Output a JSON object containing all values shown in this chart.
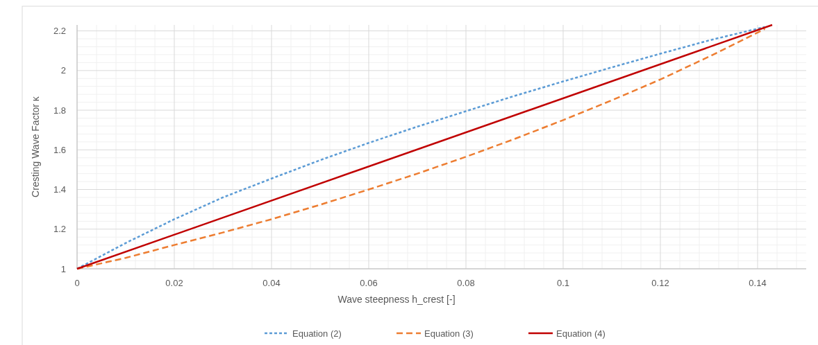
{
  "chart_data": {
    "type": "line",
    "xlabel": "Wave steepness h_crest [-]",
    "ylabel": "Cresting Wave Factor κ",
    "xlim": [
      0,
      0.15
    ],
    "xticks": [
      0,
      0.02,
      0.04,
      0.06,
      0.08,
      0.1,
      0.12,
      0.14
    ],
    "ylim": [
      1,
      2.23
    ],
    "yticks": [
      1,
      1.2,
      1.4,
      1.6,
      1.8,
      2,
      2.2
    ],
    "grid": true,
    "legend": "bottom",
    "marker": "none",
    "series": [
      {
        "name": "Equation (2)",
        "color": "#5b9bd5",
        "line_style": "dotted",
        "x": [
          0,
          0.01,
          0.02,
          0.03,
          0.04,
          0.05,
          0.06,
          0.07,
          0.08,
          0.09,
          0.1,
          0.11,
          0.12,
          0.13,
          0.1415
        ],
        "values": [
          1,
          1.13,
          1.25,
          1.36,
          1.455,
          1.548,
          1.635,
          1.717,
          1.795,
          1.872,
          1.945,
          2.016,
          2.085,
          2.152,
          2.22
        ]
      },
      {
        "name": "Equation (3)",
        "color": "#ed7d31",
        "line_style": "dashed",
        "x": [
          0,
          0.01,
          0.02,
          0.03,
          0.04,
          0.05,
          0.06,
          0.07,
          0.08,
          0.09,
          0.1,
          0.11,
          0.12,
          0.13,
          0.1415
        ],
        "values": [
          1,
          1.055,
          1.12,
          1.183,
          1.25,
          1.323,
          1.4,
          1.48,
          1.565,
          1.655,
          1.75,
          1.85,
          1.955,
          2.07,
          2.21
        ]
      },
      {
        "name": "Equation (4)",
        "color": "#c00000",
        "line_style": "solid",
        "x": [
          0,
          0.143
        ],
        "values": [
          1,
          2.23
        ]
      }
    ]
  }
}
